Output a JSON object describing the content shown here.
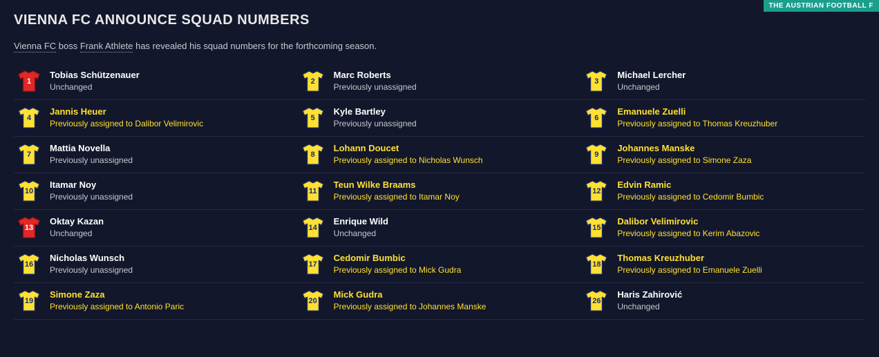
{
  "ribbon": "THE AUSTRIAN FOOTBALL F",
  "headline": "VIENNA FC ANNOUNCE SQUAD NUMBERS",
  "intro": {
    "club": "Vienna FC",
    "middle": " boss ",
    "manager": "Frank Athlete",
    "rest": " has revealed his squad numbers for the forthcoming season."
  },
  "colors": {
    "background": "#12172b",
    "shirt_yellow": "#ffe033",
    "shirt_red": "#e22727",
    "shirt_stroke_dark": "#1a2b64",
    "num_on_yellow": "#1a2b64",
    "num_on_red": "#ffffff",
    "name_yellow": "#ffe033",
    "name_white": "#ffffff",
    "status_yellow": "#ffe033",
    "status_grey": "#c8c8d0",
    "border": "#262b42",
    "ribbon_bg": "#1a9e8e"
  },
  "players": [
    {
      "num": "1",
      "name": "Tobias Schützenauer",
      "status": "Unchanged",
      "shirt": "red",
      "changed": false
    },
    {
      "num": "2",
      "name": "Marc Roberts",
      "status": "Previously unassigned",
      "shirt": "yellow",
      "changed": false
    },
    {
      "num": "3",
      "name": "Michael Lercher",
      "status": "Unchanged",
      "shirt": "yellow",
      "changed": false
    },
    {
      "num": "4",
      "name": "Jannis Heuer",
      "status": "Previously assigned to Dalibor Velimirovic",
      "shirt": "yellow",
      "changed": true
    },
    {
      "num": "5",
      "name": "Kyle Bartley",
      "status": "Previously unassigned",
      "shirt": "yellow",
      "changed": false
    },
    {
      "num": "6",
      "name": "Emanuele Zuelli",
      "status": "Previously assigned to Thomas Kreuzhuber",
      "shirt": "yellow",
      "changed": true
    },
    {
      "num": "7",
      "name": "Mattia Novella",
      "status": "Previously unassigned",
      "shirt": "yellow",
      "changed": false
    },
    {
      "num": "8",
      "name": "Lohann Doucet",
      "status": "Previously assigned to Nicholas Wunsch",
      "shirt": "yellow",
      "changed": true
    },
    {
      "num": "9",
      "name": "Johannes Manske",
      "status": "Previously assigned to Simone Zaza",
      "shirt": "yellow",
      "changed": true
    },
    {
      "num": "10",
      "name": "Itamar Noy",
      "status": "Previously unassigned",
      "shirt": "yellow",
      "changed": false
    },
    {
      "num": "11",
      "name": "Teun Wilke Braams",
      "status": "Previously assigned to Itamar Noy",
      "shirt": "yellow",
      "changed": true
    },
    {
      "num": "12",
      "name": "Edvin Ramic",
      "status": "Previously assigned to Cedomir Bumbic",
      "shirt": "yellow",
      "changed": true
    },
    {
      "num": "13",
      "name": "Oktay Kazan",
      "status": "Unchanged",
      "shirt": "red",
      "changed": false
    },
    {
      "num": "14",
      "name": "Enrique Wild",
      "status": "Unchanged",
      "shirt": "yellow",
      "changed": false
    },
    {
      "num": "15",
      "name": "Dalibor Velimirovic",
      "status": "Previously assigned to Kerim Abazovic",
      "shirt": "yellow",
      "changed": true
    },
    {
      "num": "16",
      "name": "Nicholas Wunsch",
      "status": "Previously unassigned",
      "shirt": "yellow",
      "changed": false
    },
    {
      "num": "17",
      "name": "Cedomir Bumbic",
      "status": "Previously assigned to Mick Gudra",
      "shirt": "yellow",
      "changed": true
    },
    {
      "num": "18",
      "name": "Thomas Kreuzhuber",
      "status": "Previously assigned to Emanuele Zuelli",
      "shirt": "yellow",
      "changed": true
    },
    {
      "num": "19",
      "name": "Simone Zaza",
      "status": "Previously assigned to Antonio Paric",
      "shirt": "yellow",
      "changed": true
    },
    {
      "num": "20",
      "name": "Mick Gudra",
      "status": "Previously assigned to Johannes Manske",
      "shirt": "yellow",
      "changed": true
    },
    {
      "num": "26",
      "name": "Haris Zahirović",
      "status": "Unchanged",
      "shirt": "yellow",
      "changed": false
    }
  ]
}
